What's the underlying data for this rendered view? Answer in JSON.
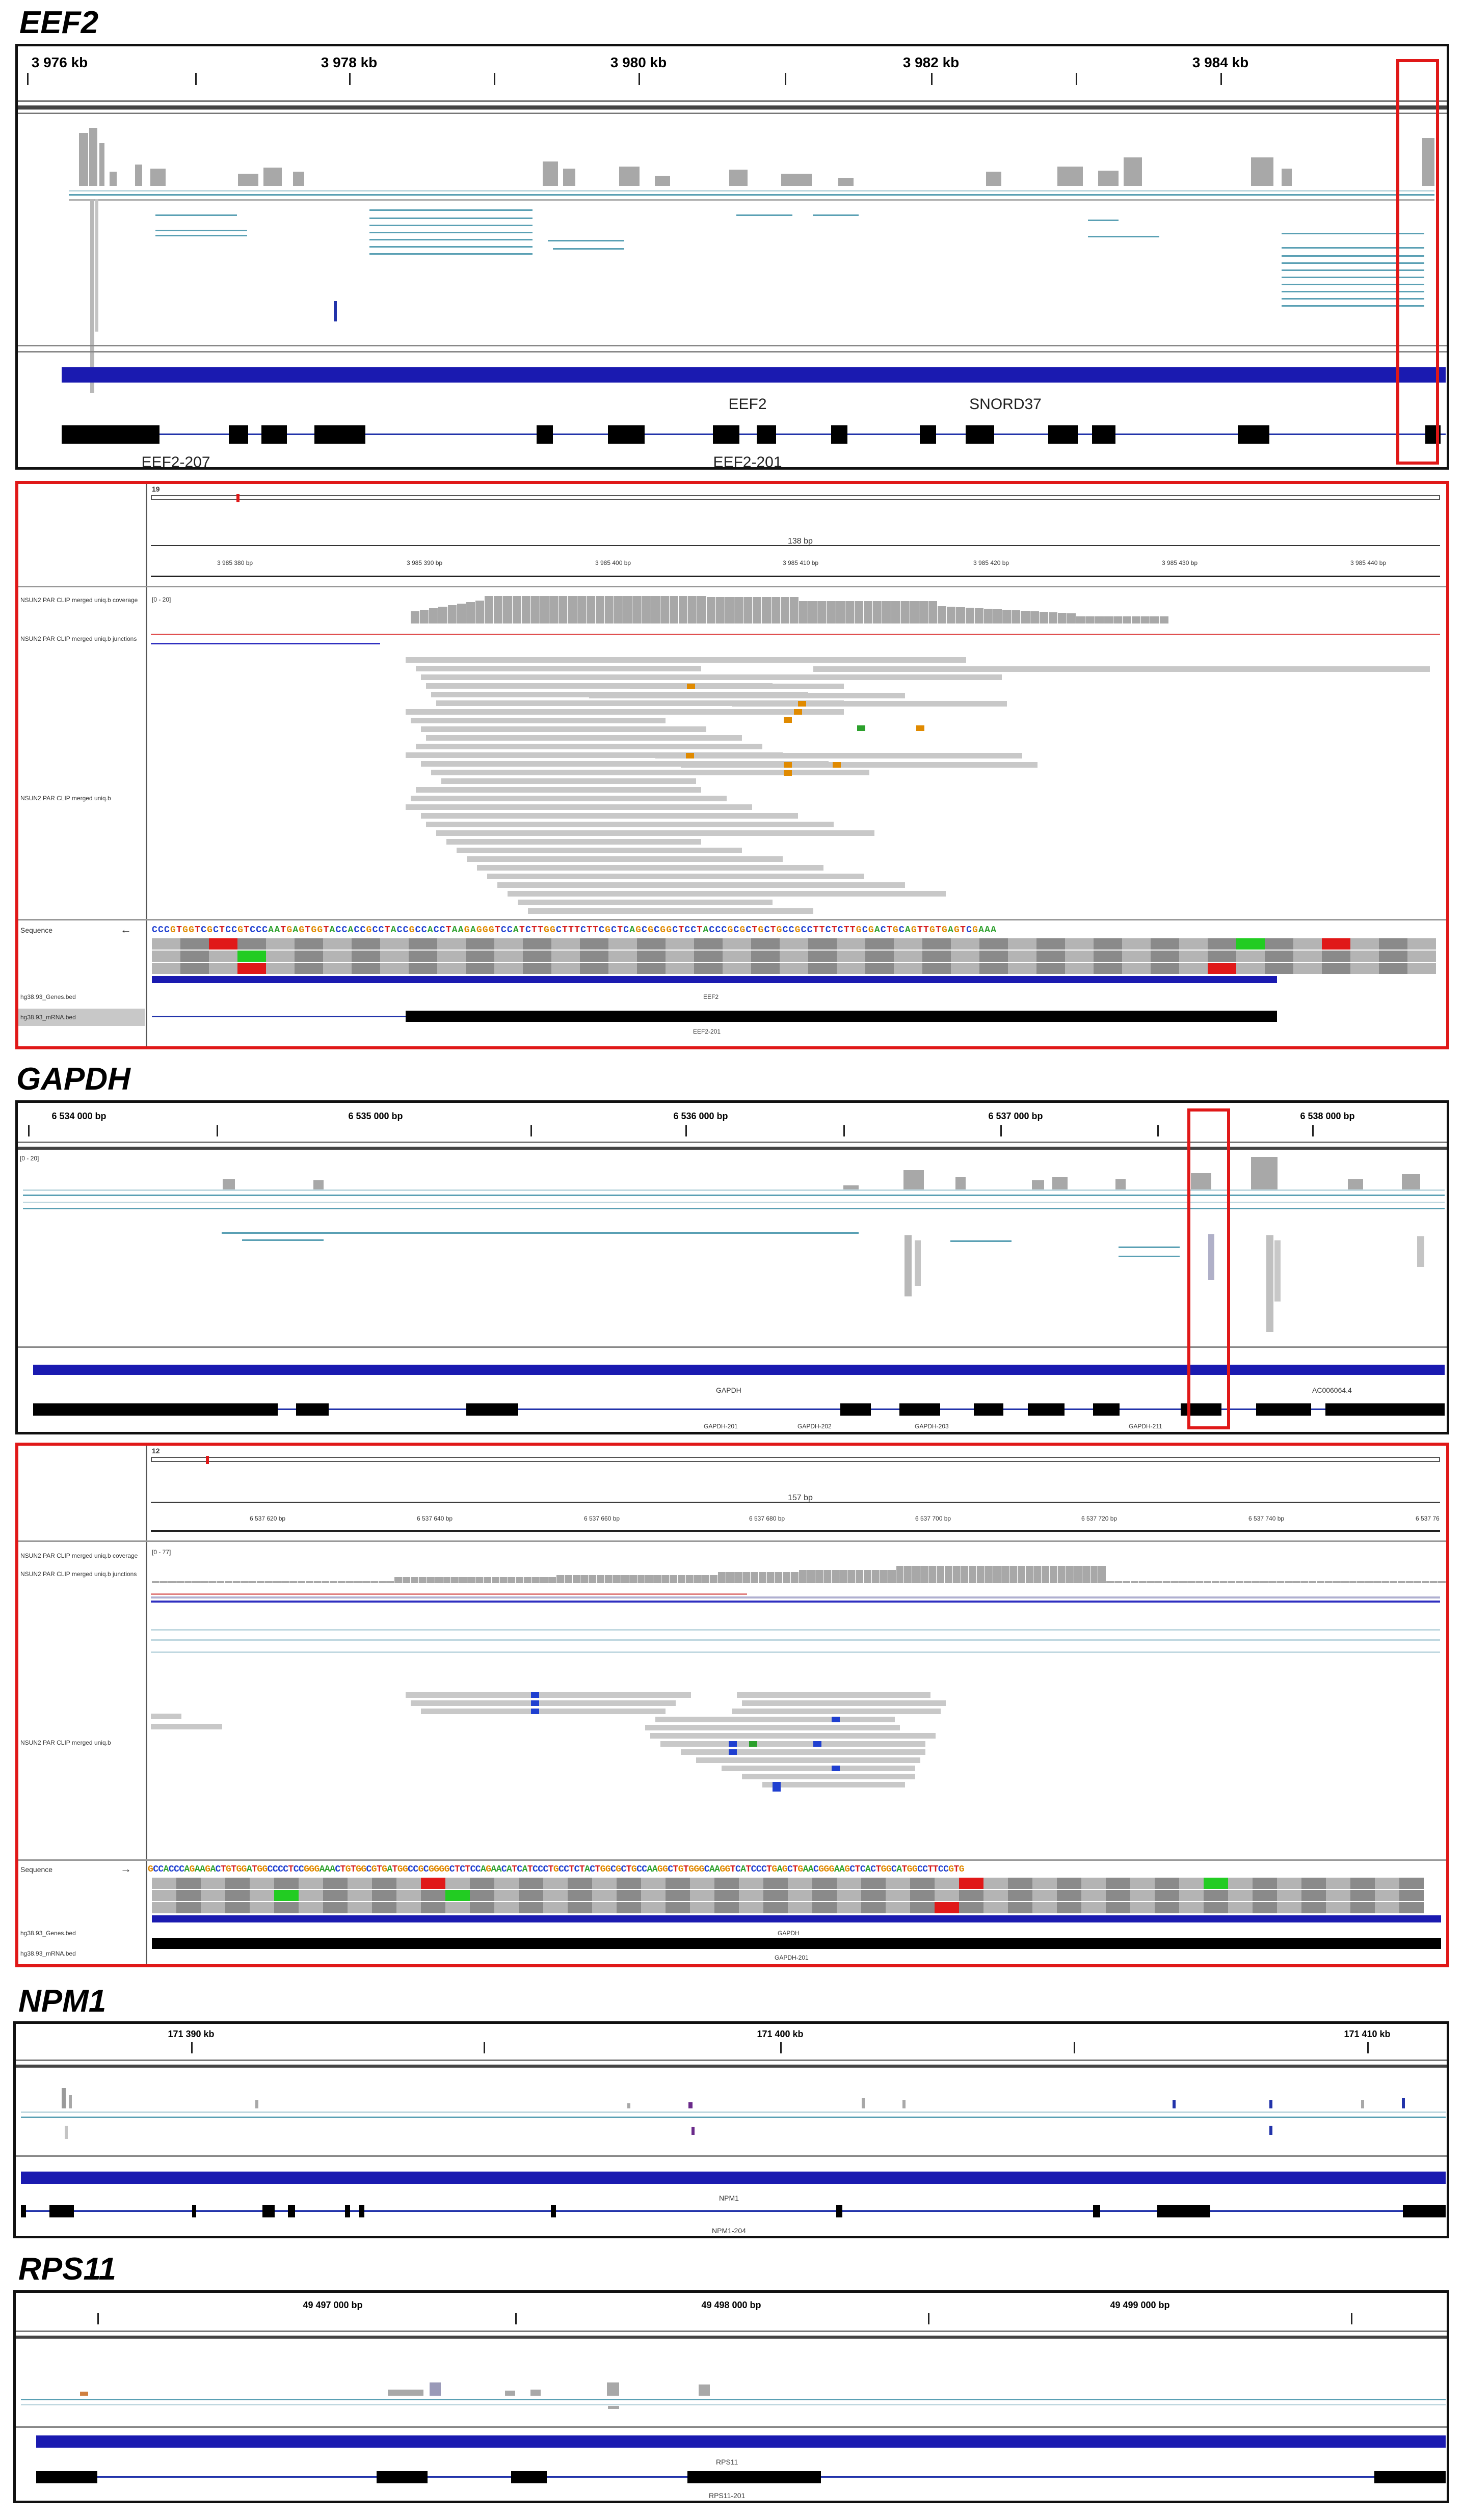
{
  "figure": {
    "eef2": {
      "title": "EEF2",
      "ruler": [
        "3 976 kb",
        "3 978 kb",
        "3 980 kb",
        "3 982 kb",
        "3 984 kb"
      ],
      "gene_label": "EEF2",
      "gene_label_2": "SNORD37",
      "transcripts": [
        "EEF2-207",
        "EEF2-201"
      ],
      "zoom": {
        "chrom": "19",
        "span": "138 bp",
        "ruler": [
          "3 985 380 bp",
          "3 985 390 bp",
          "3 985 400 bp",
          "3 985 410 bp",
          "3 985 420 bp",
          "3 985 430 bp",
          "3 985 440 bp"
        ],
        "range": "[0 - 20]",
        "tracks": [
          "NSUN2 PAR CLIP merged uniq.b coverage",
          "NSUN2 PAR CLIP merged uniq.b junctions",
          "NSUN2 PAR CLIP merged uniq.b"
        ],
        "sequence_label": "Sequence",
        "sequence_arrow": "←",
        "sequence": "CCCGTGGTCGCTCCGTCCCAATGAGTGGTACCACCGCCTACCGCCACCTAAGAGGGTCCATCTTGGCTTTCTTCGCTCAGCGCGGCTCCTACCCGCGCTGCTGCCGCCTTCTCTTGCGACTGCAGTTGTGAGTCGAAA",
        "annotation_tracks": [
          "hg38.93_Genes.bed",
          "hg38.93_mRNA.bed"
        ],
        "gene_label": "EEF2",
        "transcript_label": "EEF2-201"
      }
    },
    "gapdh": {
      "title": "GAPDH",
      "ruler": [
        "6 534 000 bp",
        "6 535 000 bp",
        "6 536 000 bp",
        "6 537 000 bp",
        "6 538 000 bp"
      ],
      "range": "[0 - 20]",
      "gene_label": "GAPDH",
      "gene_label_2": "AC006064.4",
      "transcripts": [
        "GAPDH-201",
        "GAPDH-202",
        "GAPDH-203",
        "GAPDH-211"
      ],
      "zoom": {
        "chrom": "12",
        "span": "157 bp",
        "ruler": [
          "6 537 620 bp",
          "6 537 640 bp",
          "6 537 660 bp",
          "6 537 680 bp",
          "6 537 700 bp",
          "6 537 720 bp",
          "6 537 740 bp",
          "6 537 76"
        ],
        "range": "[0 - 77]",
        "tracks": [
          "NSUN2 PAR CLIP merged uniq.b coverage",
          "NSUN2 PAR CLIP merged uniq.b junctions",
          "NSUN2 PAR CLIP merged uniq.b"
        ],
        "sequence_label": "Sequence",
        "sequence_arrow": "→",
        "sequence": "GCCACCCAGAAGACTGTGGATGGCCCCTCCGGGAAACTGTGGCGTGATGGCCGCGGGGCTCTCCAGAACATCATCCCTGCCTCTACTGGCGCTGCCAAGGCTGTGGGCAAGGTCATCCCTGAGCTGAACGGGAAGCTCACTGGCATGGCCTTCCGTG",
        "annotation_tracks": [
          "hg38.93_Genes.bed",
          "hg38.93_mRNA.bed"
        ],
        "gene_label": "GAPDH",
        "transcript_label": "GAPDH-201"
      }
    },
    "npm1": {
      "title": "NPM1",
      "ruler": [
        "171 390 kb",
        "171 400 kb",
        "171 410 kb"
      ],
      "gene_label": "NPM1",
      "transcripts": [
        "NPM1-204"
      ]
    },
    "rps11": {
      "title": "RPS11",
      "ruler": [
        "49 497 000 bp",
        "49 498 000 bp",
        "49 499 000 bp"
      ],
      "gene_label": "RPS11",
      "transcripts": [
        "RPS11-201"
      ]
    }
  },
  "colors": {
    "panel_border": "#111111",
    "highlight_red": "#e01818",
    "gene_blue": "#1a1ab0",
    "read_gray": "#c8c8c8",
    "junction_teal": "#5aa0b4",
    "base_A": "#2ca02c",
    "base_C": "#1f3fd0",
    "base_G": "#e08a00",
    "base_T": "#d62020"
  }
}
